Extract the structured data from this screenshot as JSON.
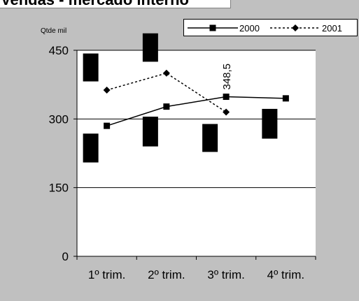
{
  "title": "Vendas - mercado interno",
  "chart_data": {
    "type": "line",
    "ylabel": "Qtde mil",
    "categories": [
      "1º trim.",
      "2º trim.",
      "3º trim.",
      "4º trim."
    ],
    "ylim": [
      0,
      450
    ],
    "yticks": [
      "0",
      "150",
      "300",
      "450"
    ],
    "grid": true,
    "legend": "top-right",
    "series": [
      {
        "name": "2000",
        "values": [
          285,
          327,
          348.5,
          345
        ],
        "style": "solid",
        "marker": "square",
        "color": "#000000"
      },
      {
        "name": "2001",
        "values": [
          363,
          400,
          315,
          null
        ],
        "style": "dotted",
        "marker": "diamond",
        "color": "#000000"
      }
    ],
    "annotations": [
      {
        "category": "3º trim.",
        "series": "2000",
        "text": "348,5"
      }
    ],
    "redacted_blocks": [
      {
        "category": "1º trim.",
        "low": 205,
        "high": 268
      },
      {
        "category": "1º trim.",
        "low": 382,
        "high": 443
      },
      {
        "category": "2º trim.",
        "low": 240,
        "high": 305
      },
      {
        "category": "2º trim.",
        "low": 425,
        "high": 487
      },
      {
        "category": "3º trim.",
        "low": 228,
        "high": 289
      },
      {
        "category": "4º trim.",
        "low": 257,
        "high": 322
      }
    ]
  }
}
